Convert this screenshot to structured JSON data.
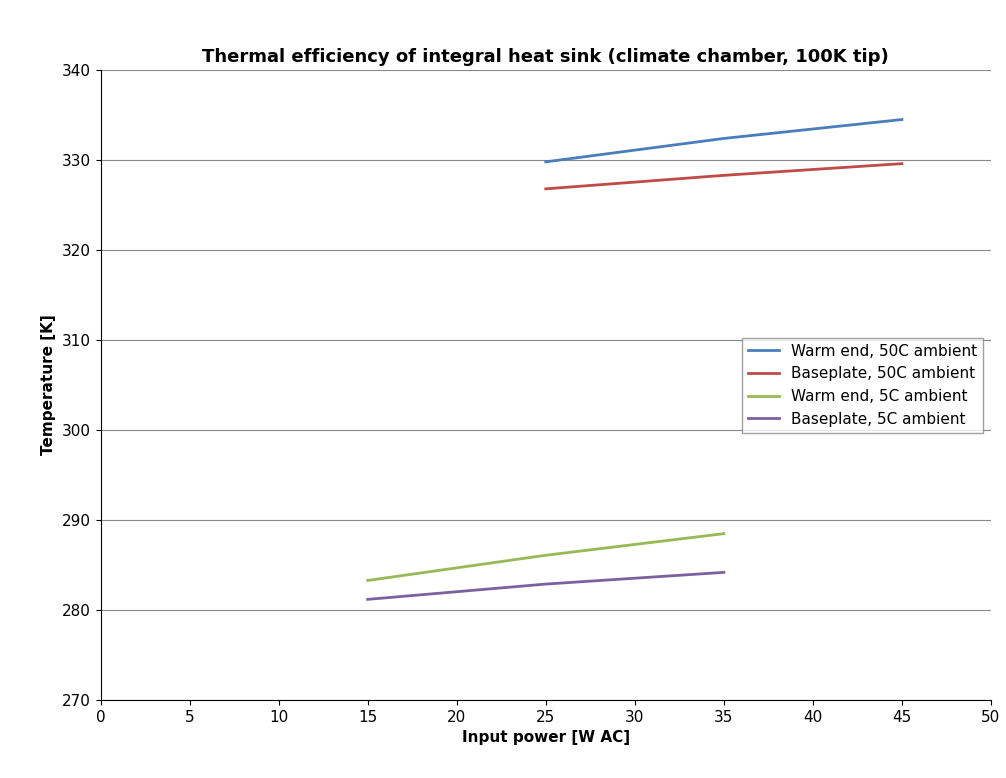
{
  "chart_data": {
    "type": "line",
    "title": "Thermal efficiency of integral heat sink (climate chamber, 100K tip)",
    "x_label": "Input power [W AC]",
    "y_label": "Temperature [K]",
    "xlim": [
      0,
      50
    ],
    "xticks": [
      0,
      5,
      10,
      15,
      20,
      25,
      30,
      35,
      40,
      45,
      50
    ],
    "ylim": [
      270,
      340
    ],
    "yticks": [
      270,
      280,
      290,
      300,
      310,
      320,
      330,
      340
    ],
    "grid": "y",
    "legend": "center right",
    "series": [
      {
        "name": "Warm end, 50C ambient",
        "color": "#4a7ebb",
        "x": [
          25,
          35,
          45
        ],
        "values": [
          329.8,
          332.4,
          334.5
        ]
      },
      {
        "name": "Baseplate, 50C ambient",
        "color": "#be4b48",
        "x": [
          25,
          35,
          45
        ],
        "values": [
          326.8,
          328.3,
          329.6
        ]
      },
      {
        "name": "Warm end, 5C ambient",
        "color": "#98b954",
        "x": [
          15,
          25,
          35
        ],
        "values": [
          283.3,
          286.1,
          288.5
        ]
      },
      {
        "name": "Baseplate, 5C ambient",
        "color": "#7d60a0",
        "x": [
          15,
          25,
          35
        ],
        "values": [
          281.2,
          282.9,
          284.2
        ]
      }
    ]
  }
}
